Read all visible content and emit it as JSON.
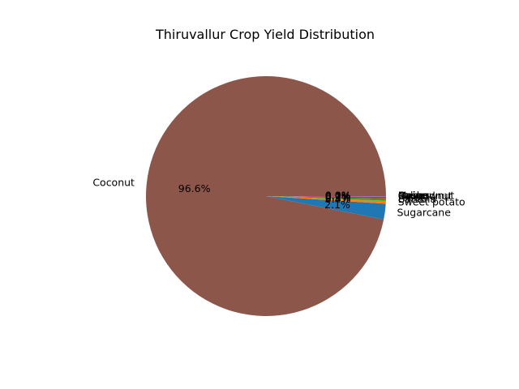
{
  "chart_data": {
    "type": "pie",
    "title": "Thiruvallur Crop Yield Distribution",
    "slices": [
      {
        "label": "Coconut",
        "value": 96.6,
        "pct_label": "96.6%",
        "color": "#8c564b"
      },
      {
        "label": "Sugarcane",
        "value": 2.1,
        "pct_label": "2.1%",
        "color": "#1f77b4"
      },
      {
        "label": "Sweet potato",
        "value": 0.4,
        "pct_label": "0.4%",
        "color": "#ff7f0e"
      },
      {
        "label": "Banana",
        "value": 0.3,
        "pct_label": "0.3%",
        "color": "#2ca02c"
      },
      {
        "label": "Rice",
        "value": 0.2,
        "pct_label": "0.2%",
        "color": "#d62728"
      },
      {
        "label": "Groundnut",
        "value": 0.1,
        "pct_label": "0.1%",
        "color": "#9467bd"
      },
      {
        "label": "Cashewnut",
        "value": 0.0,
        "pct_label": "0.0%",
        "color": "#e377c2"
      },
      {
        "label": "Pulses",
        "value": 0.0,
        "pct_label": "0.0%",
        "color": "#7f7f7f"
      },
      {
        "label": "Maize",
        "value": 0.0,
        "pct_label": "0.0%",
        "color": "#bcbd22"
      },
      {
        "label": "Onion",
        "value": 0.0,
        "pct_label": "0.0%",
        "color": "#17becf"
      }
    ]
  }
}
